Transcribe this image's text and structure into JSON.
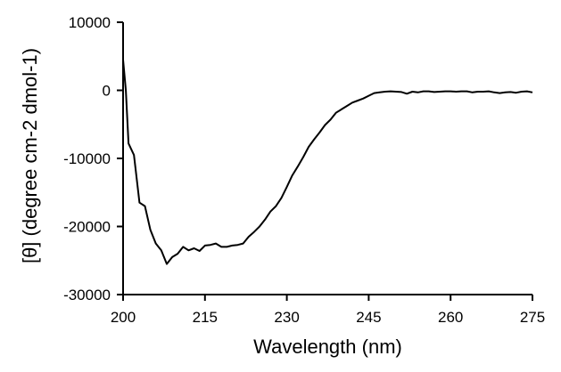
{
  "chart_data": {
    "type": "line",
    "xlabel": "Wavelength (nm)",
    "ylabel": "[θ] (degree cm-2 dmol-1)",
    "xlim": [
      200,
      275
    ],
    "ylim": [
      -30000,
      10000
    ],
    "xticks": [
      200,
      215,
      230,
      245,
      260,
      275
    ],
    "yticks": [
      10000,
      0,
      -10000,
      -20000,
      -30000
    ],
    "xtick_labels": [
      "200",
      "215",
      "230",
      "245",
      "260",
      "275"
    ],
    "ytick_labels": [
      "10000",
      "0",
      "-10000",
      "-20000",
      "-30000"
    ],
    "grid": false,
    "legend": "none",
    "series_color": "#000000",
    "series": [
      {
        "x": [
          200,
          200.5,
          201,
          202,
          203,
          204,
          205,
          206,
          207,
          208,
          209,
          210,
          211,
          212,
          213,
          214,
          215,
          216,
          217,
          218,
          219,
          220,
          221,
          222,
          223,
          224,
          225,
          226,
          227,
          228,
          229,
          230,
          231,
          232,
          233,
          234,
          235,
          236,
          237,
          238,
          239,
          240,
          241,
          242,
          243,
          244,
          245,
          246,
          247,
          248,
          249,
          250,
          251,
          252,
          253,
          254,
          255,
          256,
          257,
          258,
          259,
          260,
          261,
          262,
          263,
          264,
          265,
          266,
          267,
          268,
          269,
          270,
          271,
          272,
          273,
          274,
          275
        ],
        "y": [
          4500,
          0,
          -7800,
          -9500,
          -16500,
          -17000,
          -20500,
          -22500,
          -23500,
          -25500,
          -24500,
          -24000,
          -23000,
          -23500,
          -23200,
          -23600,
          -22800,
          -22700,
          -22500,
          -23000,
          -23000,
          -22800,
          -22700,
          -22500,
          -21500,
          -20800,
          -20000,
          -19000,
          -17800,
          -17000,
          -15800,
          -14200,
          -12500,
          -11200,
          -9800,
          -8300,
          -7200,
          -6200,
          -5100,
          -4300,
          -3300,
          -2800,
          -2300,
          -1800,
          -1500,
          -1200,
          -800,
          -400,
          -300,
          -200,
          -150,
          -200,
          -250,
          -500,
          -200,
          -300,
          -150,
          -150,
          -250,
          -200,
          -150,
          -150,
          -200,
          -150,
          -150,
          -300,
          -200,
          -200,
          -150,
          -300,
          -400,
          -300,
          -250,
          -350,
          -200,
          -150,
          -300
        ]
      }
    ]
  }
}
